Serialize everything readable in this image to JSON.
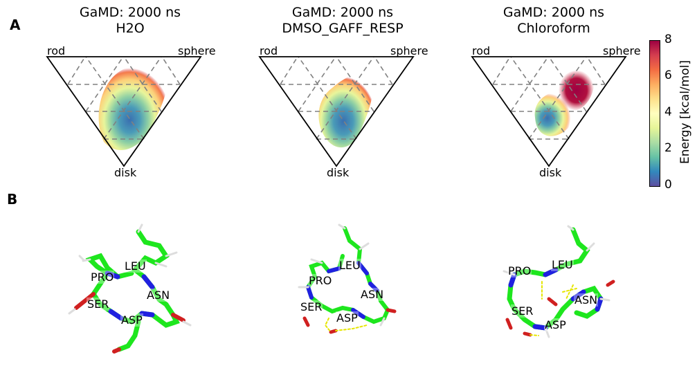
{
  "panels": {
    "a": "A",
    "b": "B"
  },
  "plots": [
    {
      "title": "GaMD: 2000 ns\nH2O",
      "rod": "rod",
      "sphere": "sphere",
      "disk": "disk"
    },
    {
      "title": "GaMD: 2000 ns\nDMSO_GAFF_RESP",
      "rod": "rod",
      "sphere": "sphere",
      "disk": "disk"
    },
    {
      "title": "GaMD: 2000 ns\nChloroform",
      "rod": "rod",
      "sphere": "sphere",
      "disk": "disk"
    }
  ],
  "colorbar": {
    "label": "Energy [kcal/mol]",
    "ticks": [
      "8",
      "6",
      "4",
      "2",
      "0"
    ],
    "colors": [
      "#9e0142",
      "#d53e4f",
      "#f46d43",
      "#fdae61",
      "#fee08b",
      "#ffffbf",
      "#e6f598",
      "#abdda4",
      "#66c2a5",
      "#3288bd",
      "#5e4fa2"
    ]
  },
  "structures": [
    {
      "labels": [
        "LEU",
        "PRO",
        "ASN",
        "SER",
        "ASP"
      ]
    },
    {
      "labels": [
        "LEU",
        "PRO",
        "ASN",
        "SER",
        "ASP"
      ]
    },
    {
      "labels": [
        "PRO",
        "LEU",
        "ASN",
        "SER",
        "ASP"
      ]
    }
  ]
}
